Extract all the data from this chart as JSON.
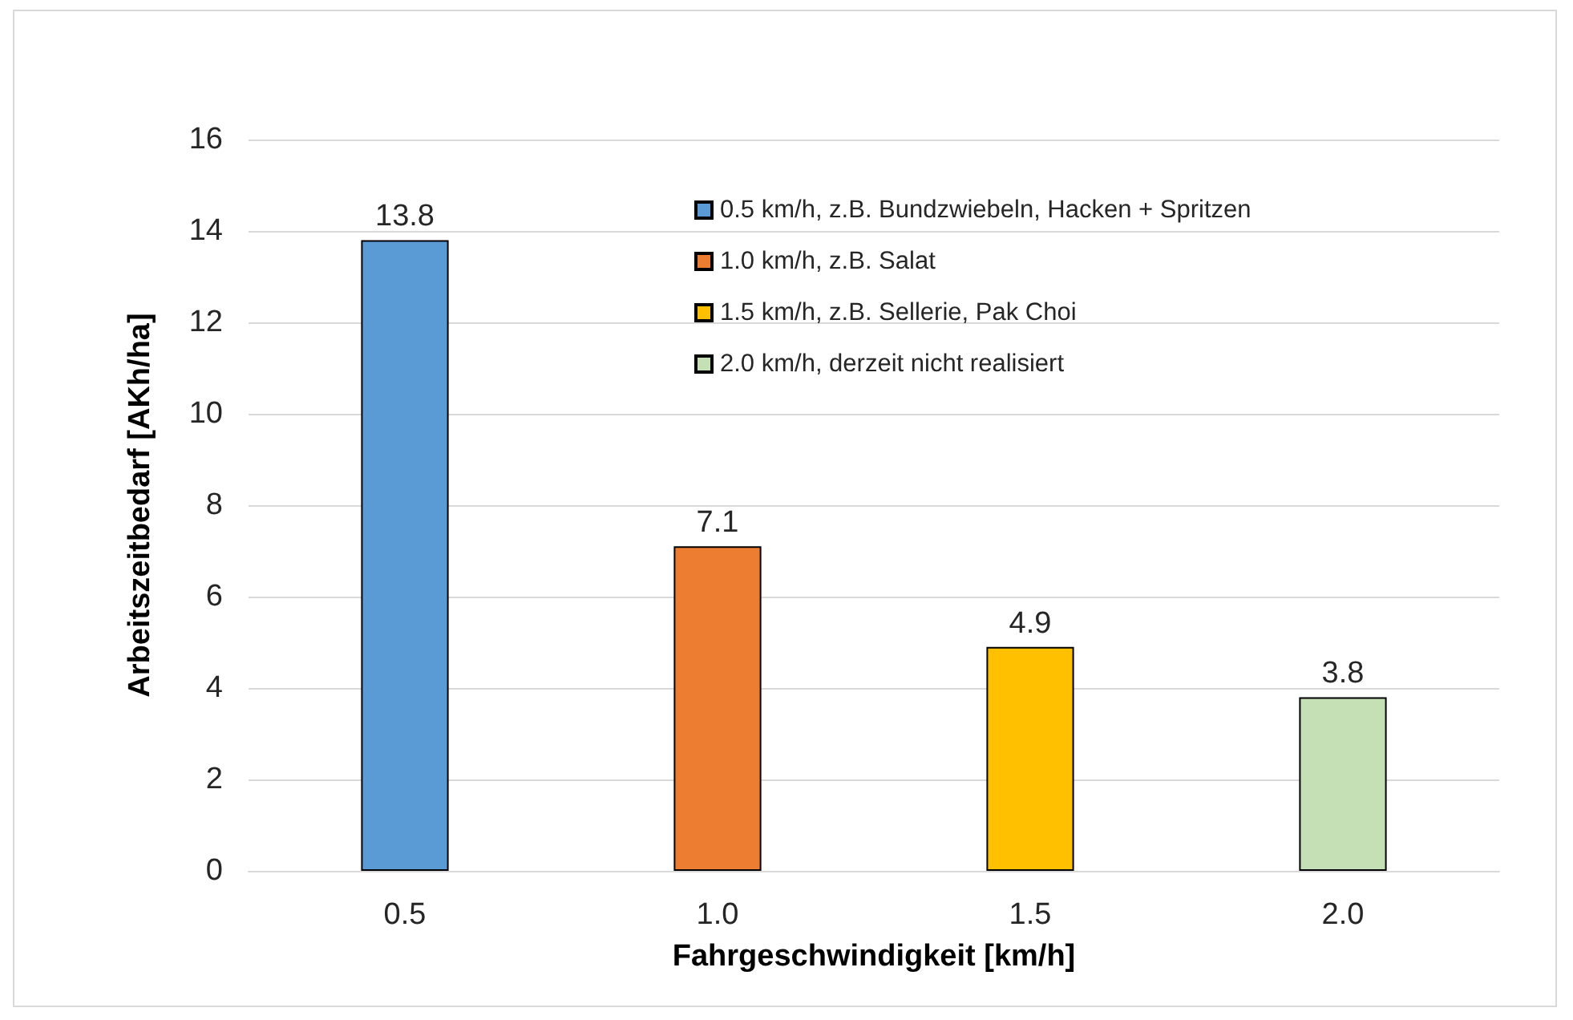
{
  "chart_data": {
    "type": "bar",
    "xlabel": "Fahrgeschwindigkeit [km/h]",
    "ylabel": "Arbeitszeitbedarf [AKh/ha]",
    "categories": [
      "0.5",
      "1.0",
      "1.5",
      "2.0"
    ],
    "series": [
      {
        "name": "0.5 km/h, z.B. Bundzwiebeln, Hacken + Spritzen",
        "color": "#5b9bd5",
        "values": [
          13.8,
          null,
          null,
          null
        ]
      },
      {
        "name": "1.0 km/h, z.B. Salat",
        "color": "#ed7d31",
        "values": [
          null,
          7.1,
          null,
          null
        ]
      },
      {
        "name": "1.5 km/h, z.B. Sellerie, Pak Choi",
        "color": "#ffc000",
        "values": [
          null,
          null,
          4.9,
          null
        ]
      },
      {
        "name": "2.0 km/h, derzeit nicht realisiert",
        "color": "#c5e0b4",
        "values": [
          null,
          null,
          null,
          3.8
        ]
      }
    ],
    "ylim": [
      0,
      16
    ],
    "yticks": [
      0,
      2,
      4,
      6,
      8,
      10,
      12,
      14,
      16
    ],
    "grid": "y",
    "legend": "top right",
    "data_labels": true
  }
}
